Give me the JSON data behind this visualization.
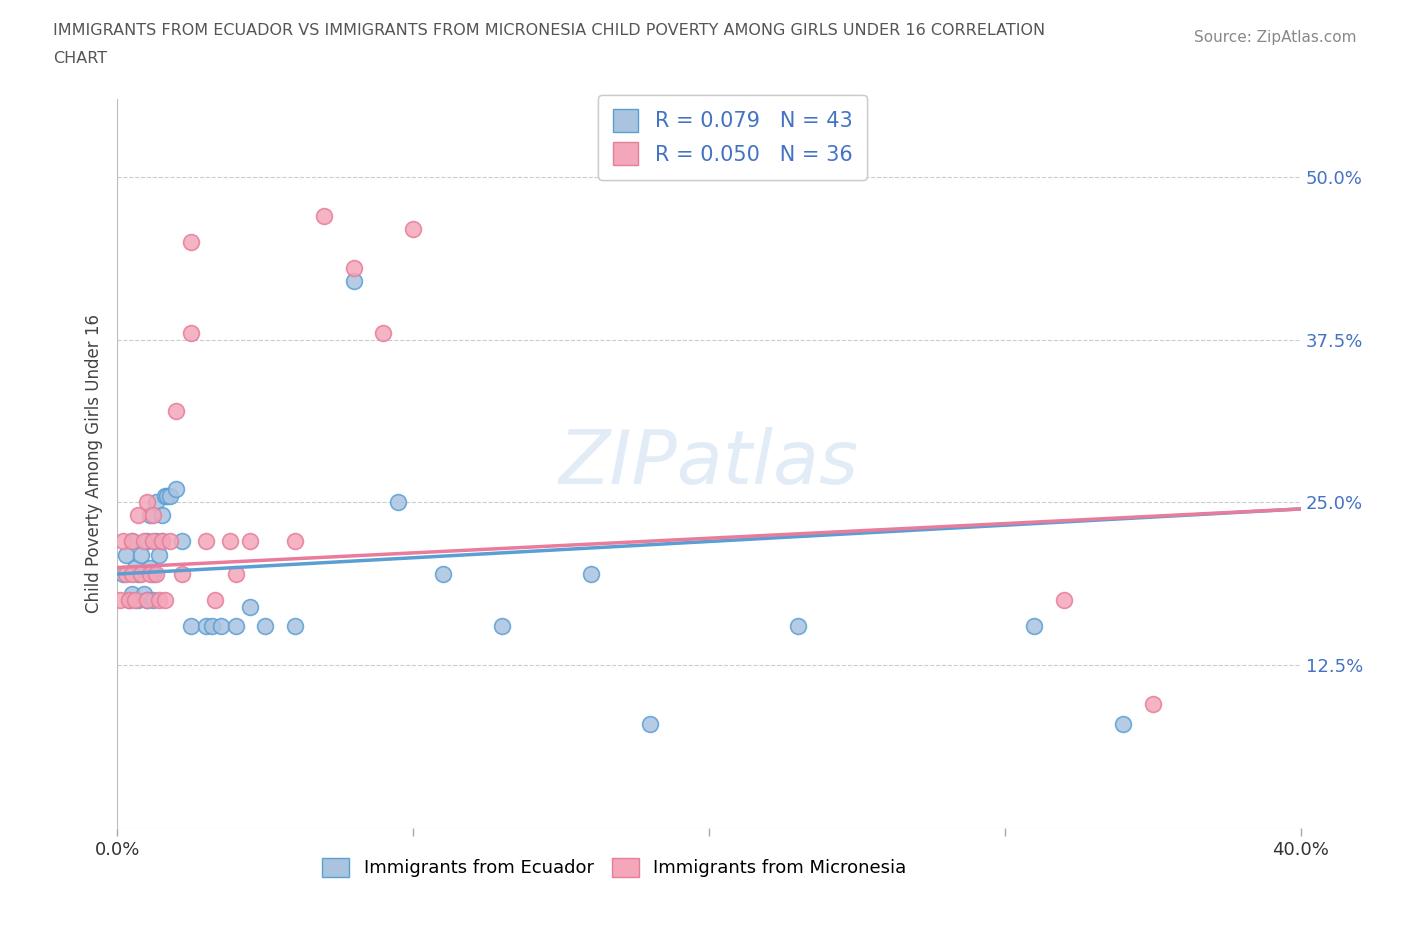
{
  "title": "IMMIGRANTS FROM ECUADOR VS IMMIGRANTS FROM MICRONESIA CHILD POVERTY AMONG GIRLS UNDER 16 CORRELATION\nCHART",
  "source": "Source: ZipAtlas.com",
  "ylabel": "Child Poverty Among Girls Under 16",
  "xlim": [
    0.0,
    0.4
  ],
  "ylim": [
    0.0,
    0.56
  ],
  "yticks": [
    0.0,
    0.125,
    0.25,
    0.375,
    0.5
  ],
  "ytick_labels": [
    "",
    "12.5%",
    "25.0%",
    "37.5%",
    "50.0%"
  ],
  "xticks": [
    0.0,
    0.1,
    0.2,
    0.3,
    0.4
  ],
  "xtick_labels": [
    "0.0%",
    "",
    "",
    "",
    "40.0%"
  ],
  "r_ecuador": 0.079,
  "n_ecuador": 43,
  "r_micronesia": 0.05,
  "n_micronesia": 36,
  "color_ecuador": "#aac4e0",
  "color_micronesia": "#f4a7b9",
  "trendline_ecuador": "#5a9fd4",
  "trendline_micronesia": "#e87c9a",
  "background_color": "#ffffff",
  "watermark": "ZIPatlas",
  "ecuador_x": [
    0.002,
    0.003,
    0.004,
    0.005,
    0.005,
    0.006,
    0.007,
    0.007,
    0.008,
    0.009,
    0.01,
    0.01,
    0.011,
    0.011,
    0.012,
    0.012,
    0.013,
    0.013,
    0.014,
    0.015,
    0.015,
    0.016,
    0.017,
    0.018,
    0.02,
    0.022,
    0.025,
    0.03,
    0.032,
    0.035,
    0.04,
    0.045,
    0.05,
    0.06,
    0.08,
    0.095,
    0.11,
    0.13,
    0.16,
    0.18,
    0.23,
    0.31,
    0.34
  ],
  "ecuador_y": [
    0.195,
    0.21,
    0.175,
    0.22,
    0.18,
    0.2,
    0.195,
    0.175,
    0.21,
    0.18,
    0.22,
    0.175,
    0.24,
    0.2,
    0.195,
    0.175,
    0.25,
    0.22,
    0.21,
    0.24,
    0.22,
    0.255,
    0.255,
    0.255,
    0.26,
    0.22,
    0.155,
    0.155,
    0.155,
    0.155,
    0.155,
    0.17,
    0.155,
    0.155,
    0.42,
    0.25,
    0.195,
    0.155,
    0.195,
    0.08,
    0.155,
    0.155,
    0.08
  ],
  "micronesia_x": [
    0.001,
    0.002,
    0.003,
    0.004,
    0.005,
    0.005,
    0.006,
    0.007,
    0.008,
    0.009,
    0.01,
    0.01,
    0.011,
    0.012,
    0.012,
    0.013,
    0.014,
    0.015,
    0.016,
    0.018,
    0.02,
    0.022,
    0.025,
    0.025,
    0.03,
    0.033,
    0.038,
    0.04,
    0.045,
    0.06,
    0.07,
    0.08,
    0.09,
    0.1,
    0.32,
    0.35
  ],
  "micronesia_y": [
    0.175,
    0.22,
    0.195,
    0.175,
    0.22,
    0.195,
    0.175,
    0.24,
    0.195,
    0.22,
    0.25,
    0.175,
    0.195,
    0.22,
    0.24,
    0.195,
    0.175,
    0.22,
    0.175,
    0.22,
    0.32,
    0.195,
    0.45,
    0.38,
    0.22,
    0.175,
    0.22,
    0.195,
    0.22,
    0.22,
    0.47,
    0.43,
    0.38,
    0.46,
    0.175,
    0.095
  ]
}
